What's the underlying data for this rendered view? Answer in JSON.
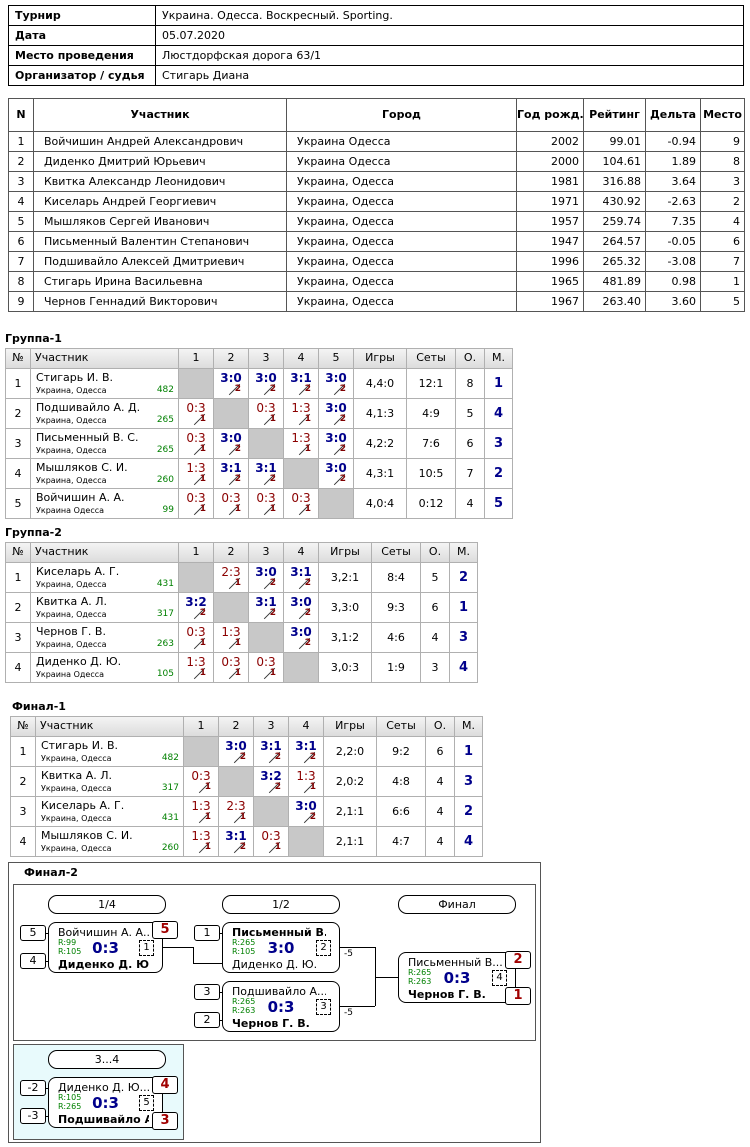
{
  "info": {
    "rows": [
      [
        "Турнир",
        "Украина. Одесса. Воскресный. Sporting."
      ],
      [
        "Дата",
        "05.07.2020"
      ],
      [
        "Место проведения",
        "Люстдорфская дорога 63/1"
      ],
      [
        "Организатор / судья",
        "Стигарь Диана"
      ]
    ]
  },
  "participants": {
    "header": [
      "N",
      "Участник",
      "Город",
      "Год рожд.",
      "Рейтинг",
      "Дельта",
      "Место"
    ],
    "rows": [
      [
        "1",
        "Войчишин Андрей Александрович",
        "Украина Одесса",
        "2002",
        "99.01",
        "-0.94",
        "9"
      ],
      [
        "2",
        "Диденко Дмитрий Юрьевич",
        "Украина Одесса",
        "2000",
        "104.61",
        "1.89",
        "8"
      ],
      [
        "3",
        "Квитка Александр Леонидович",
        "Украина, Одесса",
        "1981",
        "316.88",
        "3.64",
        "3"
      ],
      [
        "4",
        "Киселарь Андрей Георгиевич",
        "Украина, Одесса",
        "1971",
        "430.92",
        "-2.63",
        "2"
      ],
      [
        "5",
        "Мышляков Сергей Иванович",
        "Украина, Одесса",
        "1957",
        "259.74",
        "7.35",
        "4"
      ],
      [
        "6",
        "Письменный Валентин Степанович",
        "Украина, Одесса",
        "1947",
        "264.57",
        "-0.05",
        "6"
      ],
      [
        "7",
        "Подшивайло Алексей Дмитриевич",
        "Украина, Одесса",
        "1996",
        "265.32",
        "-3.08",
        "7"
      ],
      [
        "8",
        "Стигарь Ирина Васильевна",
        "Украина, Одесса",
        "1965",
        "481.89",
        "0.98",
        "1"
      ],
      [
        "9",
        "Чернов Геннадий Викторович",
        "Украина, Одесса",
        "1967",
        "263.40",
        "3.60",
        "5"
      ]
    ]
  },
  "groups": [
    {
      "title": "Группа-1",
      "header": [
        "№",
        "Участник",
        "1",
        "2",
        "3",
        "4",
        "5",
        "Игры",
        "Сеты",
        "О.",
        "М."
      ],
      "rows": [
        {
          "n": "1",
          "name": "Стигарь И. В.",
          "city": "Украина, Одесса",
          "rating": "482",
          "results": [
            null,
            [
              "3:0",
              "2"
            ],
            [
              "3:0",
              "2"
            ],
            [
              "3:1",
              "2"
            ],
            [
              "3:0",
              "2"
            ]
          ],
          "games": "4,4:0",
          "sets": "12:1",
          "points": "8",
          "place": "1"
        },
        {
          "n": "2",
          "name": "Подшивайло А. Д.",
          "city": "Украина, Одесса",
          "rating": "265",
          "results": [
            [
              "0:3",
              "1"
            ],
            null,
            [
              "0:3",
              "1"
            ],
            [
              "1:3",
              "1"
            ],
            [
              "3:0",
              "2"
            ]
          ],
          "games": "4,1:3",
          "sets": "4:9",
          "points": "5",
          "place": "4"
        },
        {
          "n": "3",
          "name": "Письменный В. С.",
          "city": "Украина, Одесса",
          "rating": "265",
          "results": [
            [
              "0:3",
              "1"
            ],
            [
              "3:0",
              "2"
            ],
            null,
            [
              "1:3",
              "1"
            ],
            [
              "3:0",
              "2"
            ]
          ],
          "games": "4,2:2",
          "sets": "7:6",
          "points": "6",
          "place": "3"
        },
        {
          "n": "4",
          "name": "Мышляков С. И.",
          "city": "Украина, Одесса",
          "rating": "260",
          "results": [
            [
              "1:3",
              "1"
            ],
            [
              "3:1",
              "2"
            ],
            [
              "3:1",
              "2"
            ],
            null,
            [
              "3:0",
              "2"
            ]
          ],
          "games": "4,3:1",
          "sets": "10:5",
          "points": "7",
          "place": "2"
        },
        {
          "n": "5",
          "name": "Войчишин А. А.",
          "city": "Украина Одесса",
          "rating": "99",
          "results": [
            [
              "0:3",
              "1"
            ],
            [
              "0:3",
              "1"
            ],
            [
              "0:3",
              "1"
            ],
            [
              "0:3",
              "1"
            ],
            null
          ],
          "games": "4,0:4",
          "sets": "0:12",
          "points": "4",
          "place": "5"
        }
      ]
    },
    {
      "title": "Группа-2",
      "header": [
        "№",
        "Участник",
        "1",
        "2",
        "3",
        "4",
        "Игры",
        "Сеты",
        "О.",
        "М."
      ],
      "rows": [
        {
          "n": "1",
          "name": "Киселарь А. Г.",
          "city": "Украина, Одесса",
          "rating": "431",
          "results": [
            null,
            [
              "2:3",
              "1"
            ],
            [
              "3:0",
              "2"
            ],
            [
              "3:1",
              "2"
            ]
          ],
          "games": "3,2:1",
          "sets": "8:4",
          "points": "5",
          "place": "2"
        },
        {
          "n": "2",
          "name": "Квитка А. Л.",
          "city": "Украина, Одесса",
          "rating": "317",
          "results": [
            [
              "3:2",
              "2"
            ],
            null,
            [
              "3:1",
              "2"
            ],
            [
              "3:0",
              "2"
            ]
          ],
          "games": "3,3:0",
          "sets": "9:3",
          "points": "6",
          "place": "1"
        },
        {
          "n": "3",
          "name": "Чернов Г. В.",
          "city": "Украина, Одесса",
          "rating": "263",
          "results": [
            [
              "0:3",
              "1"
            ],
            [
              "1:3",
              "1"
            ],
            null,
            [
              "3:0",
              "2"
            ]
          ],
          "games": "3,1:2",
          "sets": "4:6",
          "points": "4",
          "place": "3"
        },
        {
          "n": "4",
          "name": "Диденко Д. Ю.",
          "city": "Украина Одесса",
          "rating": "105",
          "results": [
            [
              "1:3",
              "1"
            ],
            [
              "0:3",
              "1"
            ],
            [
              "0:3",
              "1"
            ],
            null
          ],
          "games": "3,0:3",
          "sets": "1:9",
          "points": "3",
          "place": "4"
        }
      ]
    },
    {
      "title": "Финал-1",
      "header": [
        "№",
        "Участник",
        "1",
        "2",
        "3",
        "4",
        "Игры",
        "Сеты",
        "О.",
        "М."
      ],
      "rows": [
        {
          "n": "1",
          "name": "Стигарь И. В.",
          "city": "Украина, Одесса",
          "rating": "482",
          "results": [
            null,
            [
              "3:0",
              "2"
            ],
            [
              "3:1",
              "2"
            ],
            [
              "3:1",
              "2"
            ]
          ],
          "games": "2,2:0",
          "sets": "9:2",
          "points": "6",
          "place": "1"
        },
        {
          "n": "2",
          "name": "Квитка А. Л.",
          "city": "Украина, Одесса",
          "rating": "317",
          "results": [
            [
              "0:3",
              "1"
            ],
            null,
            [
              "3:2",
              "2"
            ],
            [
              "1:3",
              "1"
            ]
          ],
          "games": "2,0:2",
          "sets": "4:8",
          "points": "4",
          "place": "3"
        },
        {
          "n": "3",
          "name": "Киселарь А. Г.",
          "city": "Украина, Одесса",
          "rating": "431",
          "results": [
            [
              "1:3",
              "1"
            ],
            [
              "2:3",
              "1"
            ],
            null,
            [
              "3:0",
              "2"
            ]
          ],
          "games": "2,1:1",
          "sets": "6:6",
          "points": "4",
          "place": "2"
        },
        {
          "n": "4",
          "name": "Мышляков С. И.",
          "city": "Украина, Одесса",
          "rating": "260",
          "results": [
            [
              "1:3",
              "1"
            ],
            [
              "3:1",
              "2"
            ],
            [
              "0:3",
              "1"
            ],
            null
          ],
          "games": "2,1:1",
          "sets": "4:7",
          "points": "4",
          "place": "4"
        }
      ]
    }
  ],
  "final2": {
    "title": "Финал-2",
    "rounds": [
      "1/4",
      "1/2",
      "Финал"
    ],
    "consolation": "3...4",
    "matches": [
      {
        "game": "1",
        "score": "0:3",
        "p1": {
          "seed": "5",
          "name": "Войчишин А. А...",
          "rating": "R:99",
          "result": "5"
        },
        "p2": {
          "seed": "4",
          "name": "Диденко Д. Ю.",
          "rating": "R:105"
        }
      },
      {
        "game": "2",
        "score": "3:0",
        "note": "-5",
        "p1": {
          "seed": "1",
          "name": "Письменный В....",
          "rating": "R:265"
        },
        "p2": {
          "name": "Диденко Д. Ю.",
          "rating": "R:105"
        }
      },
      {
        "game": "3",
        "score": "0:3",
        "note": "-5",
        "p1": {
          "seed": "3",
          "name": "Подшивайло А....",
          "rating": "R:265"
        },
        "p2": {
          "seed": "2",
          "name": "Чернов Г. В.",
          "rating": "R:263"
        }
      },
      {
        "game": "4",
        "score": "0:3",
        "p1": {
          "name": "Письменный В....",
          "rating": "R:265",
          "result": "2"
        },
        "p2": {
          "name": "Чернов Г. В.",
          "rating": "R:263",
          "result": "1"
        }
      },
      {
        "game": "5",
        "score": "0:3",
        "p1": {
          "seed": "-2",
          "name": "Диденко Д. Ю....",
          "rating": "R:105",
          "result": "4"
        },
        "p2": {
          "seed": "-3",
          "name": "Подшивайло А...",
          "rating": "R:265",
          "result": "3"
        }
      }
    ]
  }
}
